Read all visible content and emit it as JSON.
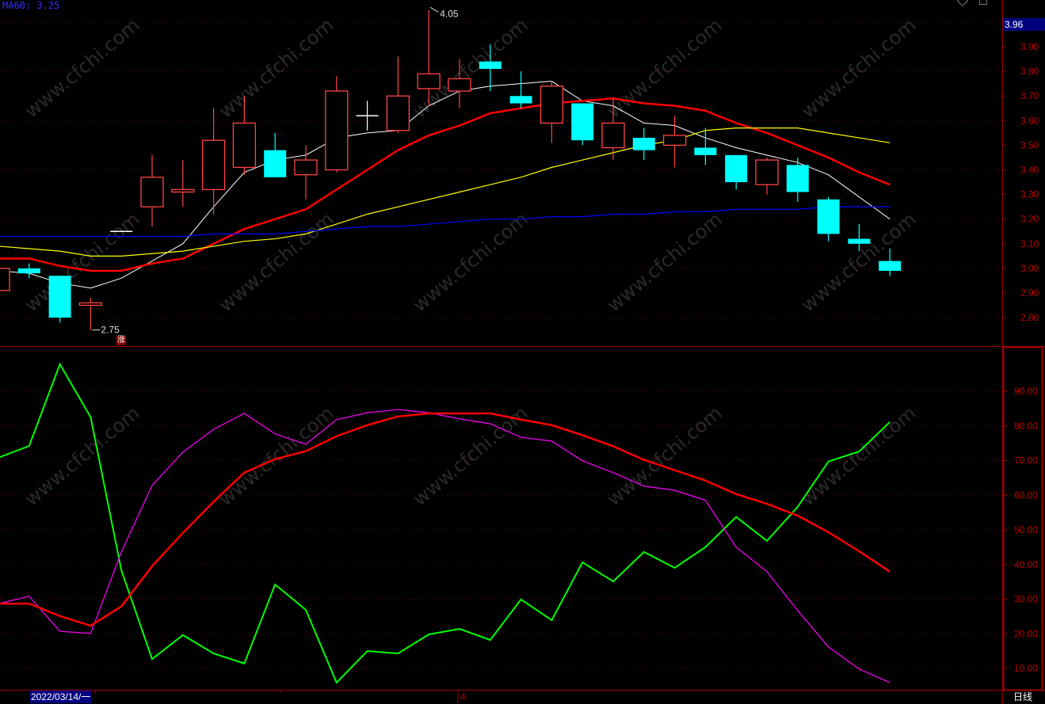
{
  "header": {
    "ma60_label": "MA60: 3.25",
    "current_price": "3.96"
  },
  "footer": {
    "date": "2022/03/14/一",
    "month_marker": "4",
    "period": "日线"
  },
  "annotations": {
    "high_label": "4.05",
    "low_label": "2.75",
    "up_marker": "涨"
  },
  "watermark": "www.cfchi.com",
  "colors": {
    "up": "#ff4444",
    "down": "#00ffff",
    "ma5": "#ffffff",
    "ma10": "#ff0000",
    "ma20": "#ffff00",
    "ma60": "#0000ff",
    "k": "#00ff00",
    "d": "#ff00ff",
    "j": "#ff0000",
    "axis": "#c00000",
    "background": "#000000"
  },
  "chart_data": [
    {
      "type": "candlestick",
      "ylim": [
        2.72,
        4.09
      ],
      "yticks": [
        "3.90",
        "3.80",
        "3.70",
        "3.60",
        "3.50",
        "3.40",
        "3.30",
        "3.20",
        "3.10",
        "3.00",
        "2.90",
        "2.80"
      ],
      "grid": true,
      "candles": [
        {
          "o": 2.91,
          "h": 3.0,
          "l": 2.91,
          "c": 3.0
        },
        {
          "o": 3.0,
          "h": 3.02,
          "l": 2.96,
          "c": 2.98
        },
        {
          "o": 2.97,
          "h": 2.97,
          "l": 2.78,
          "c": 2.8
        },
        {
          "o": 2.85,
          "h": 2.88,
          "l": 2.75,
          "c": 2.86
        },
        {
          "o": 3.15,
          "h": 3.15,
          "l": 3.15,
          "c": 3.15
        },
        {
          "o": 3.25,
          "h": 3.46,
          "l": 3.17,
          "c": 3.37
        },
        {
          "o": 3.31,
          "h": 3.44,
          "l": 3.25,
          "c": 3.32
        },
        {
          "o": 3.32,
          "h": 3.65,
          "l": 3.22,
          "c": 3.52
        },
        {
          "o": 3.41,
          "h": 3.7,
          "l": 3.38,
          "c": 3.59
        },
        {
          "o": 3.48,
          "h": 3.55,
          "l": 3.37,
          "c": 3.37
        },
        {
          "o": 3.38,
          "h": 3.5,
          "l": 3.28,
          "c": 3.44
        },
        {
          "o": 3.4,
          "h": 3.78,
          "l": 3.39,
          "c": 3.72
        },
        {
          "o": 3.62,
          "h": 3.68,
          "l": 3.56,
          "c": 3.62
        },
        {
          "o": 3.56,
          "h": 3.86,
          "l": 3.55,
          "c": 3.7
        },
        {
          "o": 3.73,
          "h": 4.05,
          "l": 3.66,
          "c": 3.79
        },
        {
          "o": 3.72,
          "h": 3.85,
          "l": 3.65,
          "c": 3.77
        },
        {
          "o": 3.84,
          "h": 3.91,
          "l": 3.72,
          "c": 3.81
        },
        {
          "o": 3.7,
          "h": 3.8,
          "l": 3.65,
          "c": 3.67
        },
        {
          "o": 3.59,
          "h": 3.76,
          "l": 3.51,
          "c": 3.74
        },
        {
          "o": 3.67,
          "h": 3.67,
          "l": 3.5,
          "c": 3.52
        },
        {
          "o": 3.49,
          "h": 3.69,
          "l": 3.44,
          "c": 3.59
        },
        {
          "o": 3.53,
          "h": 3.57,
          "l": 3.44,
          "c": 3.48
        },
        {
          "o": 3.5,
          "h": 3.62,
          "l": 3.41,
          "c": 3.54
        },
        {
          "o": 3.49,
          "h": 3.57,
          "l": 3.42,
          "c": 3.46
        },
        {
          "o": 3.46,
          "h": 3.46,
          "l": 3.32,
          "c": 3.35
        },
        {
          "o": 3.34,
          "h": 3.45,
          "l": 3.3,
          "c": 3.44
        },
        {
          "o": 3.42,
          "h": 3.45,
          "l": 3.27,
          "c": 3.31
        },
        {
          "o": 3.28,
          "h": 3.29,
          "l": 3.11,
          "c": 3.14
        },
        {
          "o": 3.12,
          "h": 3.18,
          "l": 3.07,
          "c": 3.1
        },
        {
          "o": 3.03,
          "h": 3.08,
          "l": 2.97,
          "c": 2.99
        }
      ],
      "series": [
        {
          "name": "ma5",
          "values": [
            2.99,
            2.98,
            2.94,
            2.92,
            2.96,
            3.03,
            3.1,
            3.25,
            3.39,
            3.44,
            3.46,
            3.53,
            3.55,
            3.56,
            3.66,
            3.72,
            3.74,
            3.75,
            3.76,
            3.68,
            3.66,
            3.59,
            3.58,
            3.53,
            3.49,
            3.46,
            3.43,
            3.38,
            3.29,
            3.2
          ]
        },
        {
          "name": "ma10",
          "values": [
            3.04,
            3.04,
            3.01,
            2.99,
            2.99,
            3.02,
            3.04,
            3.1,
            3.16,
            3.2,
            3.24,
            3.32,
            3.4,
            3.48,
            3.54,
            3.58,
            3.63,
            3.65,
            3.67,
            3.68,
            3.69,
            3.67,
            3.66,
            3.64,
            3.59,
            3.55,
            3.5,
            3.45,
            3.39,
            3.34
          ]
        },
        {
          "name": "ma20",
          "values": [
            3.09,
            3.08,
            3.07,
            3.05,
            3.05,
            3.06,
            3.07,
            3.09,
            3.11,
            3.12,
            3.14,
            3.18,
            3.22,
            3.25,
            3.28,
            3.31,
            3.34,
            3.37,
            3.41,
            3.44,
            3.47,
            3.5,
            3.52,
            3.56,
            3.57,
            3.57,
            3.57,
            3.55,
            3.53,
            3.51
          ]
        },
        {
          "name": "MA60",
          "values": [
            3.13,
            3.13,
            3.13,
            3.13,
            3.13,
            3.13,
            3.13,
            3.14,
            3.14,
            3.14,
            3.15,
            3.16,
            3.17,
            3.17,
            3.18,
            3.19,
            3.2,
            3.2,
            3.21,
            3.21,
            3.22,
            3.22,
            3.23,
            3.23,
            3.24,
            3.24,
            3.24,
            3.25,
            3.25,
            3.25
          ]
        }
      ]
    },
    {
      "type": "line",
      "ylim": [
        2,
        100
      ],
      "yticks": [
        "90.00",
        "80.00",
        "70.00",
        "60.00",
        "50.00",
        "40.00",
        "30.00",
        "20.00",
        "10.00"
      ],
      "grid": true,
      "series": [
        {
          "color": "#00ff00",
          "values": [
            70.8,
            74.2,
            97.8,
            82.5,
            38.3,
            12.7,
            19.6,
            14.3,
            11.4,
            34.2,
            26.9,
            5.9,
            15.0,
            14.3,
            19.8,
            21.4,
            18.2,
            29.9,
            23.9,
            40.6,
            35.1,
            43.6,
            39.0,
            45.0,
            53.7,
            46.8,
            56.6,
            69.7,
            72.6,
            81.1
          ]
        },
        {
          "color": "#ff00ff",
          "values": [
            28.7,
            30.8,
            20.7,
            20.1,
            43.6,
            62.8,
            72.4,
            79.0,
            83.6,
            77.7,
            74.7,
            81.8,
            83.8,
            84.7,
            83.8,
            82.0,
            80.6,
            76.7,
            75.6,
            69.9,
            66.5,
            62.6,
            61.4,
            58.5,
            45.0,
            37.9,
            26.7,
            16.2,
            9.8,
            5.9
          ]
        },
        {
          "color": "#ff0000",
          "values": [
            28.7,
            28.7,
            25.1,
            22.3,
            27.9,
            39.5,
            49.1,
            58.1,
            66.5,
            70.4,
            72.7,
            77.0,
            80.2,
            82.7,
            83.6,
            83.6,
            83.6,
            81.8,
            80.2,
            77.3,
            74.1,
            70.2,
            67.2,
            64.2,
            60.3,
            57.5,
            54.1,
            49.3,
            43.8,
            37.9
          ]
        }
      ]
    }
  ]
}
